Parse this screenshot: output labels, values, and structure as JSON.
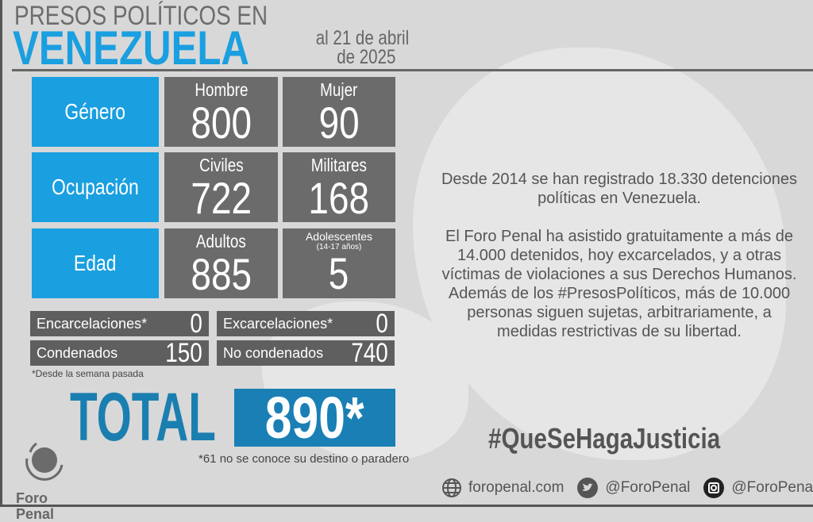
{
  "header": {
    "title_top": "PRESOS POLÍTICOS EN",
    "title_main": "VENEZUELA",
    "date_line1": "al 21 de abril",
    "date_line2": "de 2025"
  },
  "grid": [
    {
      "category": "Género",
      "a_label": "Hombre",
      "a_value": "800",
      "b_label": "Mujer",
      "b_value": "90"
    },
    {
      "category": "Ocupación",
      "a_label": "Civiles",
      "a_value": "722",
      "b_label": "Militares",
      "b_value": "168"
    },
    {
      "category": "Edad",
      "a_label": "Adultos",
      "a_value": "885",
      "b_label": "Adolescentes",
      "b_sublabel": "(14-17 años)",
      "b_value": "5"
    }
  ],
  "stats": {
    "encarcelaciones_label": "Encarcelaciones*",
    "encarcelaciones_value": "0",
    "excarcelaciones_label": "Excarcelaciones*",
    "excarcelaciones_value": "0",
    "condenados_label": "Condenados",
    "condenados_value": "150",
    "no_condenados_label": "No condenados",
    "no_condenados_value": "740",
    "footnote": "*Desde la semana pasada"
  },
  "total": {
    "label": "TOTAL",
    "value": "890*",
    "note": "*61 no se conoce su destino o paradero"
  },
  "info": {
    "p1": "Desde 2014 se han registrado 18.330 detenciones políticas en Venezuela.",
    "p2": "El Foro Penal ha asistido gratuitamente a más de 14.000 detenidos, hoy excarcelados, y a otras víctimas de violaciones a sus Derechos Humanos. Además de los #PresosPolíticos, más de 10.000 personas siguen sujetas, arbitrariamente, a medidas restrictivas de su libertad."
  },
  "hashtag": "#QueSeHagaJusticia",
  "footer": {
    "website": "foropenal.com",
    "twitter": "@ForoPenal",
    "instagram": "@ForoPenal"
  },
  "logo": {
    "text": "Foro Penal"
  },
  "colors": {
    "accent_blue": "#1a9fe0",
    "total_blue": "#1a7fb5",
    "box_gray": "#6b6b6b"
  }
}
